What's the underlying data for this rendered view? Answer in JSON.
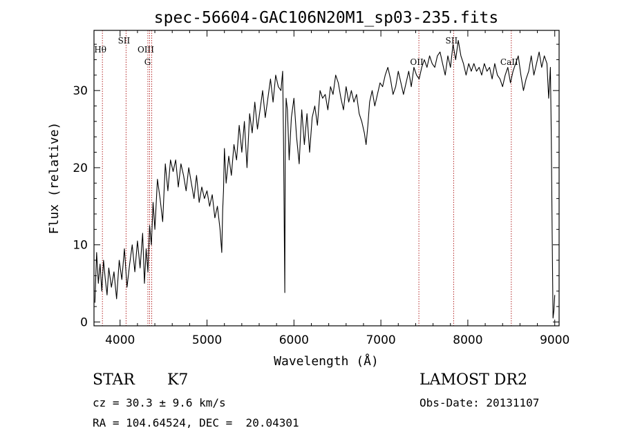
{
  "chart_data": {
    "type": "line",
    "title": "spec-56604-GAC106N20M1_sp03-235.fits",
    "xlabel": "Wavelength (Å)",
    "ylabel": "Flux (relative)",
    "xlim": [
      3700,
      9050
    ],
    "ylim": [
      -0.5,
      37.8
    ],
    "x_ticks": [
      4000,
      5000,
      6000,
      7000,
      8000,
      9000
    ],
    "y_ticks": [
      0,
      10,
      20,
      30
    ],
    "grid": false,
    "line_color": "#000000",
    "marker_color": "#b22222",
    "series": [
      {
        "x": [
          3710,
          3730,
          3750,
          3770,
          3790,
          3810,
          3830,
          3850,
          3870,
          3900,
          3930,
          3960,
          3990,
          4020,
          4050,
          4080,
          4110,
          4140,
          4170,
          4200,
          4230,
          4260,
          4280,
          4300,
          4320,
          4340,
          4360,
          4380,
          4400,
          4430,
          4460,
          4490,
          4520,
          4550,
          4580,
          4610,
          4640,
          4670,
          4700,
          4730,
          4760,
          4790,
          4820,
          4850,
          4880,
          4910,
          4940,
          4970,
          5000,
          5030,
          5060,
          5090,
          5120,
          5150,
          5170,
          5180,
          5190,
          5200,
          5220,
          5250,
          5280,
          5310,
          5340,
          5370,
          5400,
          5430,
          5460,
          5490,
          5520,
          5550,
          5580,
          5610,
          5640,
          5670,
          5700,
          5730,
          5760,
          5790,
          5820,
          5850,
          5870,
          5880,
          5890,
          5895,
          5900,
          5910,
          5925,
          5945,
          5970,
          6000,
          6030,
          6060,
          6090,
          6120,
          6150,
          6180,
          6210,
          6240,
          6270,
          6300,
          6330,
          6360,
          6390,
          6420,
          6450,
          6480,
          6510,
          6540,
          6570,
          6600,
          6630,
          6660,
          6690,
          6720,
          6750,
          6780,
          6810,
          6830,
          6850,
          6870,
          6900,
          6930,
          6960,
          6990,
          7020,
          7050,
          7080,
          7110,
          7140,
          7170,
          7200,
          7230,
          7260,
          7290,
          7320,
          7350,
          7380,
          7410,
          7440,
          7470,
          7500,
          7530,
          7560,
          7590,
          7620,
          7650,
          7680,
          7710,
          7740,
          7770,
          7800,
          7830,
          7860,
          7890,
          7920,
          7950,
          7980,
          8010,
          8040,
          8070,
          8100,
          8130,
          8160,
          8190,
          8220,
          8250,
          8280,
          8310,
          8340,
          8370,
          8400,
          8430,
          8460,
          8490,
          8520,
          8550,
          8580,
          8610,
          8640,
          8670,
          8700,
          8730,
          8760,
          8790,
          8820,
          8850,
          8880,
          8910,
          8930,
          8950,
          8960,
          8970,
          8980,
          8990,
          9000
        ],
        "y": [
          2.5,
          9.0,
          5.0,
          7.5,
          4.0,
          8.0,
          5.5,
          3.5,
          7.0,
          4.5,
          6.5,
          3.0,
          8.0,
          5.5,
          9.5,
          4.5,
          7.5,
          10.0,
          6.5,
          10.5,
          7.0,
          11.5,
          5.0,
          9.5,
          6.5,
          12.5,
          10.0,
          15.5,
          12.0,
          18.5,
          16.0,
          13.0,
          20.5,
          17.0,
          21.0,
          19.5,
          21.0,
          17.5,
          20.5,
          19.0,
          17.0,
          20.0,
          18.0,
          16.0,
          19.0,
          15.5,
          17.5,
          16.0,
          17.0,
          15.0,
          16.5,
          13.5,
          15.0,
          12.0,
          9.0,
          14.5,
          17.0,
          22.5,
          18.0,
          21.5,
          19.0,
          23.0,
          21.0,
          25.5,
          22.0,
          26.0,
          20.0,
          27.0,
          24.5,
          28.5,
          25.0,
          27.5,
          30.0,
          26.5,
          29.0,
          31.5,
          28.5,
          32.0,
          30.5,
          30.0,
          32.5,
          24.0,
          10.0,
          3.8,
          22.0,
          29.0,
          27.5,
          21.0,
          26.5,
          29.0,
          24.0,
          20.5,
          27.5,
          23.0,
          27.0,
          22.0,
          26.5,
          28.0,
          25.5,
          30.0,
          29.0,
          29.5,
          27.5,
          30.5,
          29.5,
          32.0,
          31.0,
          29.0,
          27.5,
          30.5,
          28.5,
          30.0,
          28.5,
          29.5,
          27.0,
          26.0,
          24.5,
          23.0,
          25.5,
          28.5,
          30.0,
          28.0,
          29.5,
          31.0,
          30.5,
          32.0,
          33.0,
          31.5,
          29.5,
          30.5,
          32.5,
          31.0,
          29.5,
          31.0,
          32.5,
          30.5,
          33.0,
          32.0,
          31.5,
          33.0,
          34.0,
          33.0,
          34.5,
          33.5,
          33.0,
          34.5,
          35.0,
          33.5,
          32.0,
          34.5,
          33.0,
          36.0,
          34.0,
          36.5,
          34.5,
          33.5,
          32.0,
          33.5,
          32.5,
          33.5,
          32.5,
          33.0,
          32.0,
          33.5,
          32.5,
          33.0,
          31.5,
          33.5,
          32.0,
          31.5,
          30.5,
          32.0,
          33.0,
          31.0,
          32.5,
          33.5,
          34.5,
          32.0,
          30.0,
          31.5,
          32.5,
          34.5,
          32.0,
          33.5,
          35.0,
          33.0,
          34.5,
          33.5,
          29.0,
          33.0,
          24.0,
          12.0,
          0.5,
          1.5,
          3.5
        ]
      }
    ],
    "line_markers": [
      {
        "label": "Hθ",
        "x": 3797,
        "row": 1
      },
      {
        "label": "SII",
        "x": 4069,
        "row": 0
      },
      {
        "label": "OIII",
        "x": 4320,
        "row": 1
      },
      {
        "label": "G",
        "x": 4340,
        "row": 2
      },
      {
        "label": "",
        "x": 4364,
        "row": 1
      },
      {
        "label": "OII",
        "x": 7437,
        "row": 2
      },
      {
        "label": "SII",
        "x": 7837,
        "row": 0
      },
      {
        "label": "CaII",
        "x": 8500,
        "row": 2
      }
    ]
  },
  "info": {
    "object_class": "STAR",
    "subclass": "K7",
    "survey": "LAMOST DR2",
    "redshift": "cz = 30.3 ± 9.6 km/s",
    "obs_date": "Obs-Date: 20131107",
    "coords": "RA = 104.64524, DEC =  20.04301"
  }
}
